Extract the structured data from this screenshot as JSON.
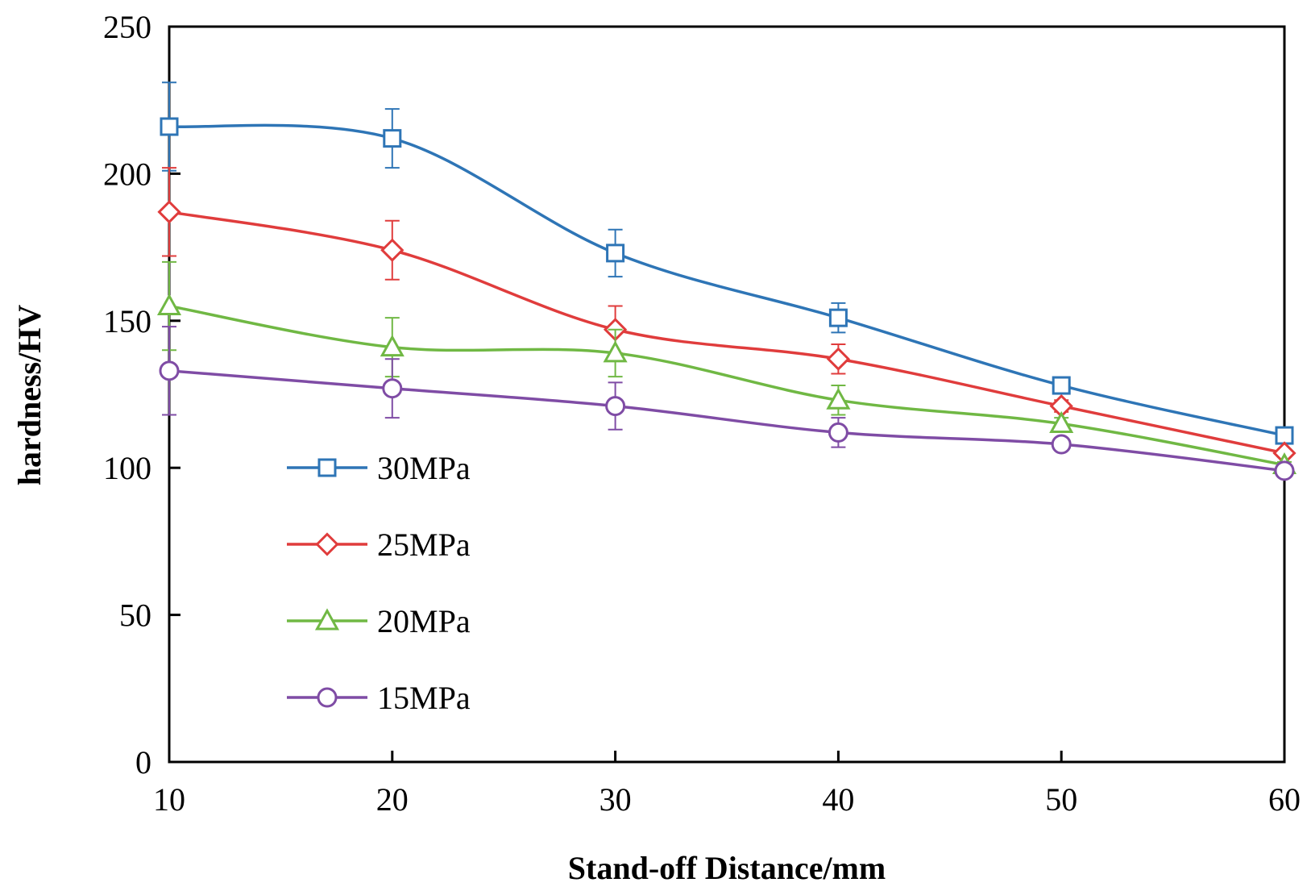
{
  "chart_data": {
    "type": "line",
    "xlabel": "Stand-off Distance/mm",
    "ylabel": "hardness/HV",
    "xlim": [
      10,
      60
    ],
    "ylim": [
      0,
      250
    ],
    "x_ticks": [
      "10",
      "20",
      "30",
      "40",
      "50",
      "60"
    ],
    "y_ticks": [
      "0",
      "50",
      "100",
      "150",
      "200",
      "250"
    ],
    "grid": false,
    "smooth": true,
    "legend_position": "lower-left",
    "x": [
      10,
      20,
      30,
      40,
      50,
      60
    ],
    "series": [
      {
        "name": "30MPa",
        "marker": "square",
        "color": "#2e75b6",
        "values": [
          216,
          212,
          173,
          151,
          128,
          111
        ],
        "errors": [
          15,
          10,
          8,
          5,
          2,
          1
        ]
      },
      {
        "name": "25MPa",
        "marker": "diamond",
        "color": "#e03c3c",
        "values": [
          187,
          174,
          147,
          137,
          121,
          105
        ],
        "errors": [
          15,
          10,
          8,
          5,
          2,
          1
        ]
      },
      {
        "name": "20MPa",
        "marker": "triangle",
        "color": "#70b844",
        "values": [
          155,
          141,
          139,
          123,
          115,
          101
        ],
        "errors": [
          15,
          10,
          8,
          5,
          2,
          1
        ]
      },
      {
        "name": "15MPa",
        "marker": "circle",
        "color": "#7f4ca5",
        "values": [
          133,
          127,
          121,
          112,
          108,
          99
        ],
        "errors": [
          15,
          10,
          8,
          5,
          2,
          1
        ]
      }
    ]
  }
}
